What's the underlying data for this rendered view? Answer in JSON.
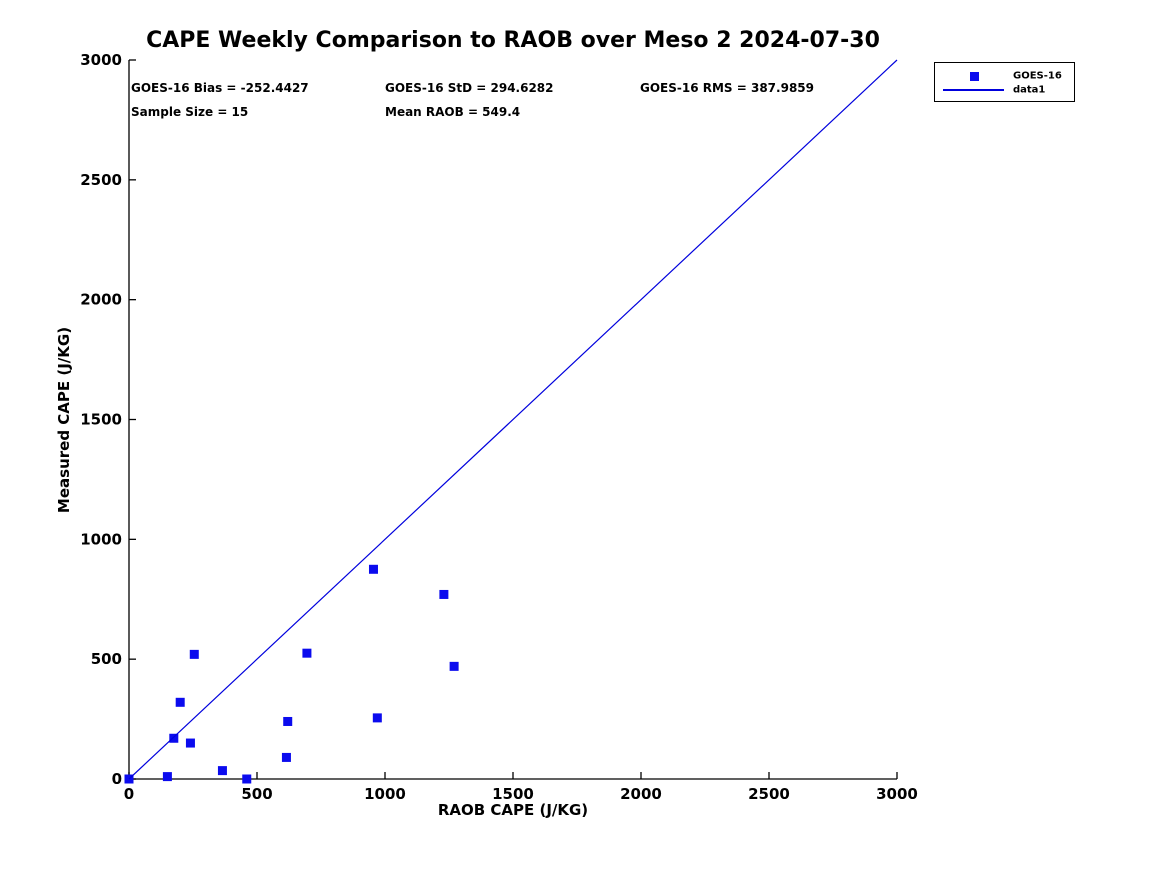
{
  "figure": {
    "title": "CAPE Weekly Comparison to RAOB over Meso 2 2024-07-30",
    "stats": {
      "bias": "GOES-16 Bias = -252.4427",
      "std": "GOES-16 StD = 294.6282",
      "rms": "GOES-16 RMS = 387.9859",
      "sample_size": "Sample Size = 15",
      "mean_raob": "Mean RAOB = 549.4"
    },
    "legend": {
      "entries": [
        {
          "label": "GOES-16",
          "symbol": "square-marker"
        },
        {
          "label": "data1",
          "symbol": "line-sample"
        }
      ],
      "position": "top-right-outside"
    },
    "colors": {
      "marker": "#0b0bee",
      "line": "#0000dd",
      "axis": "#000000",
      "text": "#000000",
      "background": "#ffffff"
    }
  },
  "chart_data": {
    "type": "scatter",
    "title": "CAPE Weekly Comparison to RAOB over Meso 2 2024-07-30",
    "xlabel": "RAOB CAPE (J/KG)",
    "ylabel": "Measured CAPE (J/KG)",
    "xlim": [
      0,
      3000
    ],
    "ylim": [
      0,
      3000
    ],
    "xticks": [
      0,
      500,
      1000,
      1500,
      2000,
      2500,
      3000
    ],
    "yticks": [
      0,
      500,
      1000,
      1500,
      2000,
      2500,
      3000
    ],
    "grid": false,
    "box": false,
    "legend_position": "top-right-outside",
    "series": [
      {
        "name": "GOES-16",
        "type": "scatter",
        "marker": "square",
        "marker_size": 9,
        "color": "#0b0bee",
        "points": [
          [
            0,
            0
          ],
          [
            150,
            10
          ],
          [
            175,
            170
          ],
          [
            200,
            320
          ],
          [
            240,
            150
          ],
          [
            255,
            520
          ],
          [
            365,
            35
          ],
          [
            460,
            0
          ],
          [
            615,
            90
          ],
          [
            620,
            240
          ],
          [
            695,
            525
          ],
          [
            955,
            875
          ],
          [
            970,
            255
          ],
          [
            1230,
            770
          ],
          [
            1270,
            470
          ]
        ]
      },
      {
        "name": "data1",
        "type": "line",
        "color": "#0000dd",
        "points": [
          [
            0,
            0
          ],
          [
            3000,
            3000
          ]
        ]
      }
    ],
    "annotations": [
      "GOES-16 Bias = -252.4427",
      "GOES-16 StD = 294.6282",
      "GOES-16 RMS = 387.9859",
      "Sample Size = 15",
      "Mean RAOB = 549.4"
    ]
  }
}
